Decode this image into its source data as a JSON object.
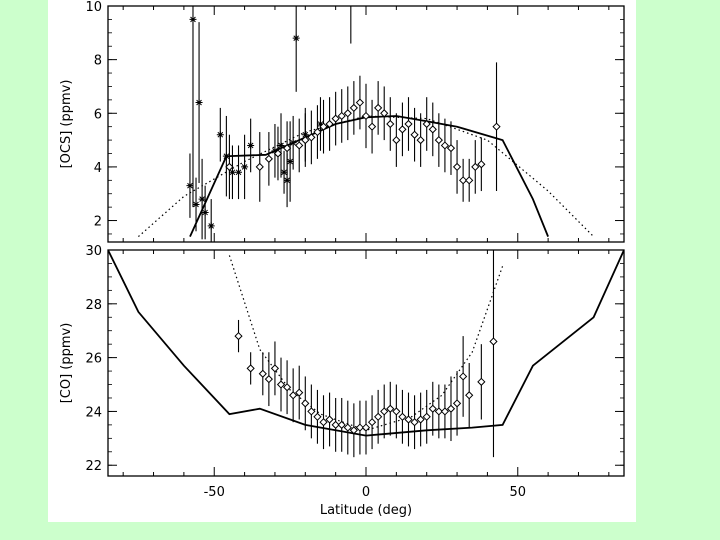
{
  "colors": {
    "background": "#ccffcc",
    "panel": "#ffffff",
    "ink": "#000000"
  },
  "chart_data": [
    {
      "type": "scatter",
      "ylabel": "[OCS]  (ppmv)",
      "xlabel": "",
      "xlim": [
        -85,
        85
      ],
      "ylim": [
        1.2,
        10
      ],
      "yticks": [
        2,
        4,
        6,
        8,
        10
      ],
      "xticks": [
        -50,
        0,
        50
      ],
      "grid": false,
      "model_solid": {
        "x": [
          -58,
          -46,
          -33,
          -30,
          -20,
          -10,
          0,
          10,
          20,
          30,
          45,
          55,
          60
        ],
        "y": [
          1.4,
          4.4,
          4.45,
          4.6,
          5.1,
          5.6,
          5.85,
          5.9,
          5.7,
          5.5,
          5.0,
          2.8,
          1.4
        ]
      },
      "model_dotted": {
        "x": [
          -75,
          -60,
          -40,
          -20,
          0,
          20,
          40,
          60,
          75
        ],
        "y": [
          1.4,
          2.9,
          4.2,
          5.3,
          5.9,
          5.8,
          5.0,
          3.1,
          1.4
        ]
      },
      "series_star": [
        {
          "x": -58,
          "y": 3.3,
          "e": 1.2
        },
        {
          "x": -57,
          "y": 9.5,
          "e": 7
        },
        {
          "x": -56,
          "y": 2.6,
          "e": 1
        },
        {
          "x": -55,
          "y": 6.4,
          "e": 3
        },
        {
          "x": -54,
          "y": 2.8,
          "e": 1.5
        },
        {
          "x": -53,
          "y": 2.3,
          "e": 1
        },
        {
          "x": -51,
          "y": 1.8,
          "e": 1
        },
        {
          "x": -48,
          "y": 5.2,
          "e": 1
        },
        {
          "x": -46,
          "y": 4.4,
          "e": 1.5
        },
        {
          "x": -44,
          "y": 3.8,
          "e": 1
        },
        {
          "x": -42,
          "y": 3.8,
          "e": 1
        },
        {
          "x": -40,
          "y": 4.0,
          "e": 1.2
        },
        {
          "x": -38,
          "y": 4.8,
          "e": 1
        },
        {
          "x": -30,
          "y": 4.6,
          "e": 1
        },
        {
          "x": -28,
          "y": 4.8,
          "e": 1.2
        },
        {
          "x": -27,
          "y": 3.8,
          "e": 0.8
        },
        {
          "x": -26,
          "y": 3.5,
          "e": 1
        },
        {
          "x": -25,
          "y": 4.2,
          "e": 1.5
        },
        {
          "x": -24,
          "y": 4.9,
          "e": 1
        },
        {
          "x": -23,
          "y": 8.8,
          "e": 2
        },
        {
          "x": -20,
          "y": 5.2,
          "e": 1
        },
        {
          "x": -15,
          "y": 5.6,
          "e": 1
        }
      ],
      "series_diamond": [
        {
          "x": -45,
          "y": 4.0,
          "e": 1.2
        },
        {
          "x": -35,
          "y": 4.0,
          "e": 1.3
        },
        {
          "x": -32,
          "y": 4.3,
          "e": 1
        },
        {
          "x": -29,
          "y": 4.5,
          "e": 1
        },
        {
          "x": -26,
          "y": 4.7,
          "e": 1
        },
        {
          "x": -22,
          "y": 4.8,
          "e": 1
        },
        {
          "x": -20,
          "y": 5.0,
          "e": 1
        },
        {
          "x": -18,
          "y": 5.1,
          "e": 1
        },
        {
          "x": -16,
          "y": 5.3,
          "e": 1
        },
        {
          "x": -14,
          "y": 5.5,
          "e": 1
        },
        {
          "x": -12,
          "y": 5.6,
          "e": 1
        },
        {
          "x": -10,
          "y": 5.8,
          "e": 1
        },
        {
          "x": -8,
          "y": 5.9,
          "e": 1
        },
        {
          "x": -6,
          "y": 6.0,
          "e": 1
        },
        {
          "x": -4,
          "y": 6.2,
          "e": 1
        },
        {
          "x": -2,
          "y": 6.4,
          "e": 1
        },
        {
          "x": 0,
          "y": 5.9,
          "e": 1.2
        },
        {
          "x": 2,
          "y": 5.5,
          "e": 1
        },
        {
          "x": 4,
          "y": 6.2,
          "e": 1
        },
        {
          "x": 6,
          "y": 6.0,
          "e": 1
        },
        {
          "x": 8,
          "y": 5.6,
          "e": 1
        },
        {
          "x": 10,
          "y": 5.0,
          "e": 1
        },
        {
          "x": 12,
          "y": 5.4,
          "e": 1
        },
        {
          "x": 14,
          "y": 5.6,
          "e": 1
        },
        {
          "x": 16,
          "y": 5.2,
          "e": 1
        },
        {
          "x": 18,
          "y": 5.0,
          "e": 1
        },
        {
          "x": 20,
          "y": 5.6,
          "e": 1
        },
        {
          "x": 22,
          "y": 5.4,
          "e": 1
        },
        {
          "x": 24,
          "y": 5.0,
          "e": 1
        },
        {
          "x": 26,
          "y": 4.8,
          "e": 1
        },
        {
          "x": 28,
          "y": 4.7,
          "e": 1
        },
        {
          "x": 30,
          "y": 4.0,
          "e": 1
        },
        {
          "x": 32,
          "y": 3.5,
          "e": 0.8
        },
        {
          "x": 34,
          "y": 3.5,
          "e": 0.8
        },
        {
          "x": 36,
          "y": 4.0,
          "e": 1
        },
        {
          "x": 38,
          "y": 4.1,
          "e": 1
        },
        {
          "x": 43,
          "y": 5.5,
          "e": 2.4
        }
      ],
      "extra_bars": [
        {
          "x": -5,
          "y": 9.6,
          "e": 1.0
        }
      ]
    },
    {
      "type": "scatter",
      "ylabel": "[CO]  (ppmv)",
      "xlabel": "Latitude  (deg)",
      "xlim": [
        -85,
        85
      ],
      "ylim": [
        21.6,
        30
      ],
      "yticks": [
        22,
        24,
        26,
        28,
        30
      ],
      "xticks": [
        -50,
        0,
        50
      ],
      "grid": false,
      "model_solid": {
        "x": [
          -85,
          -75,
          -60,
          -45,
          -35,
          -20,
          0,
          20,
          35,
          45,
          55,
          75,
          85
        ],
        "y": [
          30,
          27.7,
          25.7,
          23.9,
          24.1,
          23.5,
          23.1,
          23.3,
          23.4,
          23.5,
          25.7,
          27.5,
          30
        ]
      },
      "model_dotted": {
        "x": [
          -45,
          -35,
          -25,
          -15,
          0,
          15,
          25,
          35,
          45
        ],
        "y": [
          29.8,
          26.3,
          24.8,
          23.9,
          23.3,
          23.8,
          24.6,
          26.2,
          29.4
        ]
      },
      "series_diamond": [
        {
          "x": -42,
          "y": 26.8,
          "e": 0.6
        },
        {
          "x": -38,
          "y": 25.6,
          "e": 0.6
        },
        {
          "x": -34,
          "y": 25.4,
          "e": 0.8
        },
        {
          "x": -32,
          "y": 25.2,
          "e": 1
        },
        {
          "x": -30,
          "y": 25.6,
          "e": 1
        },
        {
          "x": -28,
          "y": 25.0,
          "e": 1
        },
        {
          "x": -26,
          "y": 24.9,
          "e": 1
        },
        {
          "x": -24,
          "y": 24.6,
          "e": 1
        },
        {
          "x": -22,
          "y": 24.7,
          "e": 1
        },
        {
          "x": -20,
          "y": 24.3,
          "e": 1
        },
        {
          "x": -18,
          "y": 24.0,
          "e": 1
        },
        {
          "x": -16,
          "y": 23.8,
          "e": 1
        },
        {
          "x": -14,
          "y": 23.6,
          "e": 1
        },
        {
          "x": -12,
          "y": 23.7,
          "e": 1
        },
        {
          "x": -10,
          "y": 23.5,
          "e": 1
        },
        {
          "x": -8,
          "y": 23.5,
          "e": 1
        },
        {
          "x": -6,
          "y": 23.4,
          "e": 1
        },
        {
          "x": -4,
          "y": 23.3,
          "e": 1
        },
        {
          "x": -2,
          "y": 23.4,
          "e": 1
        },
        {
          "x": 0,
          "y": 23.4,
          "e": 1
        },
        {
          "x": 2,
          "y": 23.6,
          "e": 1
        },
        {
          "x": 4,
          "y": 23.8,
          "e": 1
        },
        {
          "x": 6,
          "y": 24.0,
          "e": 1
        },
        {
          "x": 8,
          "y": 24.1,
          "e": 1
        },
        {
          "x": 10,
          "y": 24.0,
          "e": 1
        },
        {
          "x": 12,
          "y": 23.8,
          "e": 1
        },
        {
          "x": 14,
          "y": 23.7,
          "e": 1
        },
        {
          "x": 16,
          "y": 23.6,
          "e": 1
        },
        {
          "x": 18,
          "y": 23.7,
          "e": 1
        },
        {
          "x": 20,
          "y": 23.8,
          "e": 1
        },
        {
          "x": 22,
          "y": 24.1,
          "e": 1
        },
        {
          "x": 24,
          "y": 24.0,
          "e": 1
        },
        {
          "x": 26,
          "y": 24.0,
          "e": 1
        },
        {
          "x": 28,
          "y": 24.1,
          "e": 1.2
        },
        {
          "x": 30,
          "y": 24.3,
          "e": 1.2
        },
        {
          "x": 32,
          "y": 25.3,
          "e": 1.5
        },
        {
          "x": 34,
          "y": 24.6,
          "e": 1.2
        },
        {
          "x": 38,
          "y": 25.1,
          "e": 1.4
        },
        {
          "x": 42,
          "y": 26.6,
          "e": 4.3
        }
      ]
    }
  ]
}
